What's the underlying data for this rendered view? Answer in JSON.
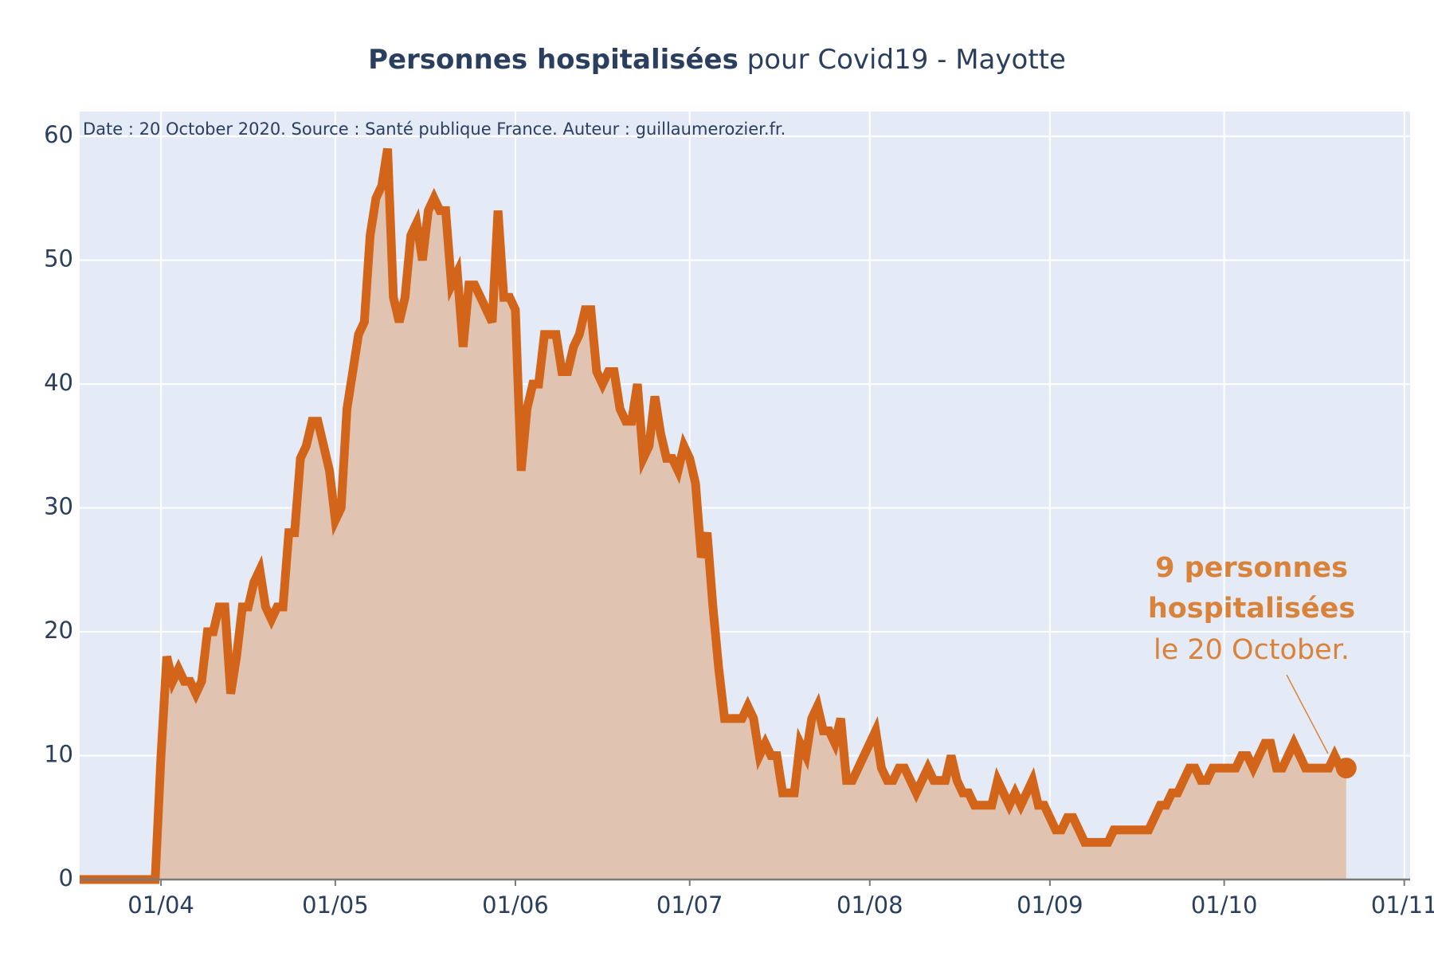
{
  "title_bold": "Personnes hospitalisées",
  "title_rest": " pour Covid19 - Mayotte",
  "source_note": "Date : 20 October 2020. Source : Santé publique France. Auteur : guillaumerozier.fr.",
  "annotation": {
    "line1": "9 personnes",
    "line2": "hospitalisées",
    "line3": "le 20 October."
  },
  "colors": {
    "line": "#d2651a",
    "fill": "#e0c4b1",
    "plot_bg": "#e5ebf6",
    "grid": "#ffffff",
    "annotation": "#d9833a",
    "text": "#2a3f5f"
  },
  "chart_data": {
    "type": "area",
    "title": "Personnes hospitalisées pour Covid19 - Mayotte",
    "xlabel": "",
    "ylabel": "",
    "x_start": "2020-03-18",
    "x_range": [
      "2020-03-18",
      "2020-11-02"
    ],
    "ylim": [
      0,
      62
    ],
    "y_ticks": [
      0,
      10,
      20,
      30,
      40,
      50,
      60
    ],
    "x_ticks": [
      {
        "date": "2020-04-01",
        "label": "01/04"
      },
      {
        "date": "2020-05-01",
        "label": "01/05"
      },
      {
        "date": "2020-06-01",
        "label": "01/06"
      },
      {
        "date": "2020-07-01",
        "label": "01/07"
      },
      {
        "date": "2020-08-01",
        "label": "01/08"
      },
      {
        "date": "2020-09-01",
        "label": "01/09"
      },
      {
        "date": "2020-10-01",
        "label": "01/10"
      },
      {
        "date": "2020-11-01",
        "label": "01/11"
      }
    ],
    "grid": true,
    "values": [
      0,
      0,
      0,
      0,
      0,
      0,
      0,
      0,
      0,
      0,
      0,
      0,
      0,
      0,
      10,
      18,
      16,
      17,
      16,
      16,
      15,
      16,
      20,
      20,
      22,
      22,
      15,
      18,
      22,
      22,
      24,
      25,
      22,
      21,
      22,
      22,
      28,
      28,
      34,
      35,
      37,
      37,
      35,
      33,
      29,
      30,
      38,
      41,
      44,
      45,
      52,
      55,
      56,
      59,
      47,
      45,
      47,
      52,
      53,
      50,
      54,
      55,
      54,
      54,
      48,
      49,
      43,
      48,
      48,
      47,
      46,
      45,
      54,
      47,
      47,
      46,
      33,
      38,
      40,
      40,
      44,
      44,
      44,
      41,
      41,
      43,
      44,
      46,
      46,
      41,
      40,
      41,
      41,
      38,
      37,
      37,
      40,
      34,
      35,
      39,
      36,
      34,
      34,
      33,
      35,
      34,
      32,
      26,
      28,
      22,
      17,
      13,
      13,
      13,
      13,
      14,
      13,
      10,
      11,
      10,
      10,
      7,
      7,
      7,
      11,
      10,
      13,
      14,
      12,
      12,
      11,
      13,
      8,
      8,
      9,
      10,
      11,
      12,
      9,
      8,
      8,
      9,
      9,
      8,
      7,
      8,
      9,
      8,
      8,
      8,
      10,
      8,
      7,
      7,
      6,
      6,
      6,
      6,
      8,
      7,
      6,
      7,
      6,
      7,
      8,
      6,
      6,
      5,
      4,
      4,
      5,
      5,
      4,
      3,
      3,
      3,
      3,
      3,
      4,
      4,
      4,
      4,
      4,
      4,
      4,
      5,
      6,
      6,
      7,
      7,
      8,
      9,
      9,
      8,
      8,
      9,
      9,
      9,
      9,
      9,
      10,
      10,
      9,
      10,
      11,
      11,
      9,
      9,
      10,
      11,
      10,
      9,
      9,
      9,
      9,
      9,
      10,
      9,
      9
    ],
    "last_value": 9,
    "last_date": "2020-10-20"
  }
}
